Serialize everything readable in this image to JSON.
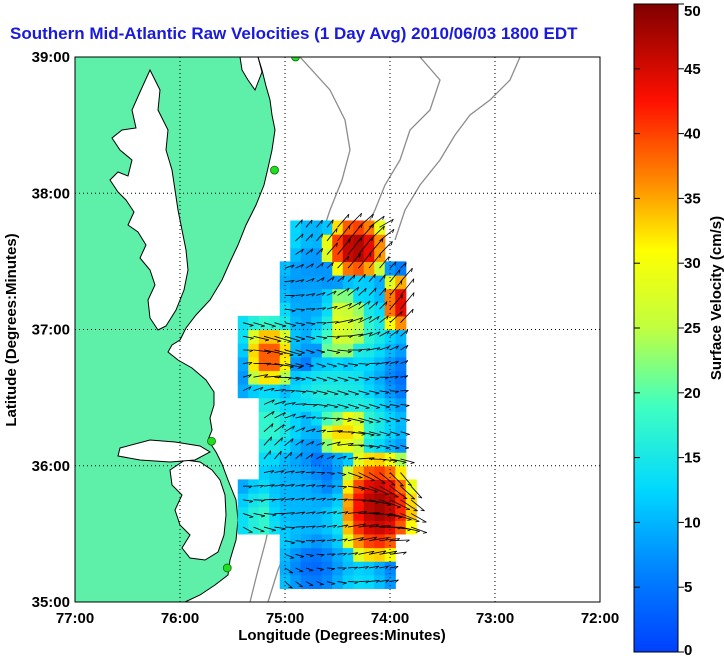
{
  "title": "Southern Mid-Atlantic Raw Velocities (1 Day Avg) 2010/06/03 1800 EDT",
  "map": {
    "xlabel": "Longitude (Degrees:Minutes)",
    "ylabel": "Latitude (Degrees:Minutes)",
    "lon_ticks": [
      "77:00",
      "76:00",
      "75:00",
      "74:00",
      "73:00",
      "72:00"
    ],
    "lat_ticks": [
      "39:00",
      "38:00",
      "37:00",
      "36:00",
      "35:00"
    ],
    "lon_range": [
      -77,
      -72
    ],
    "lat_range": [
      35,
      39
    ],
    "grid": "dotted",
    "land_color": "#5ef0a8",
    "water_color": "#ffffff",
    "coast_color": "#000000",
    "bathymetry_color": "#8c8c8c",
    "station_color": "#22dd22",
    "stations": [
      {
        "lon": -74.9,
        "lat": 39.0
      },
      {
        "lon": -75.1,
        "lat": 38.17
      },
      {
        "lon": -75.7,
        "lat": 36.18
      },
      {
        "lon": -75.55,
        "lat": 35.25
      }
    ]
  },
  "colorbar": {
    "label": "Surface Velocity (cm/s)",
    "min": 0,
    "max": 50,
    "ticks": [
      "0",
      "5",
      "10",
      "15",
      "20",
      "25",
      "30",
      "35",
      "40",
      "45",
      "50"
    ]
  },
  "chart_data": {
    "type": "heatmap",
    "title": "Southern Mid-Atlantic Raw Velocities (1 Day Avg) 2010/06/03 1800 EDT",
    "xlabel": "Longitude (Degrees:Minutes)",
    "ylabel": "Latitude (Degrees:Minutes)",
    "units": "cm/s",
    "value_range": [
      0,
      50
    ],
    "regions": [
      {
        "lon": [
          -74.55,
          -74.1
        ],
        "lat": [
          37.45,
          37.75
        ],
        "speed": 48
      },
      {
        "lon": [
          -74.0,
          -73.8
        ],
        "lat": [
          37.05,
          37.35
        ],
        "speed": 45
      },
      {
        "lon": [
          -75.3,
          -75.0
        ],
        "lat": [
          36.65,
          36.95
        ],
        "speed": 40
      },
      {
        "lon": [
          -74.7,
          -74.3
        ],
        "lat": [
          36.85,
          37.25
        ],
        "speed": 28
      },
      {
        "lon": [
          -74.6,
          -74.3
        ],
        "lat": [
          36.15,
          36.35
        ],
        "speed": 33
      },
      {
        "lon": [
          -74.4,
          -73.8
        ],
        "lat": [
          35.35,
          36.05
        ],
        "speed": 48
      },
      {
        "lon": [
          -75.1,
          -74.7
        ],
        "lat": [
          35.5,
          36.0
        ],
        "speed": 10
      },
      {
        "lon": [
          -74.9,
          -74.6
        ],
        "lat": [
          36.95,
          37.45
        ],
        "speed": 9
      },
      {
        "lon": [
          -74.9,
          -74.3
        ],
        "lat": [
          36.4,
          36.7
        ],
        "speed": 16
      }
    ]
  }
}
